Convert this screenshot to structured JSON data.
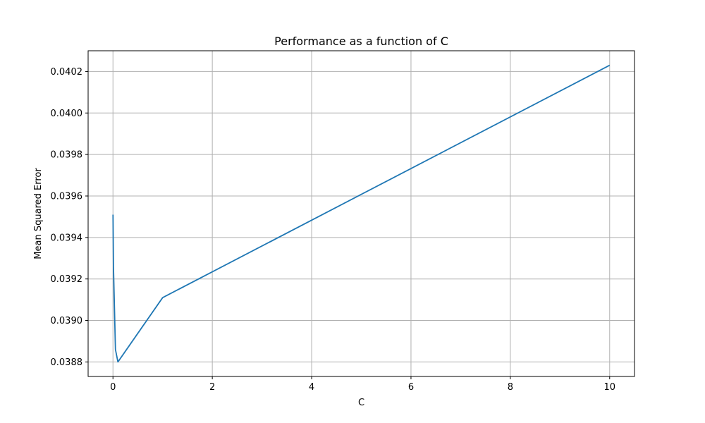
{
  "chart_data": {
    "type": "line",
    "title": "Performance as a function of C",
    "xlabel": "C",
    "ylabel": "Mean Squared Error",
    "xlim": [
      -0.5,
      10.5
    ],
    "ylim": [
      0.03873,
      0.0403
    ],
    "xticks": [
      0,
      2,
      4,
      6,
      8,
      10
    ],
    "xtick_labels": [
      "0",
      "2",
      "4",
      "6",
      "8",
      "10"
    ],
    "yticks": [
      0.0388,
      0.039,
      0.0392,
      0.0394,
      0.0396,
      0.0398,
      0.04,
      0.0402
    ],
    "ytick_labels": [
      "0.0388",
      "0.0390",
      "0.0392",
      "0.0394",
      "0.0396",
      "0.0398",
      "0.0400",
      "0.0402"
    ],
    "grid": true,
    "series": [
      {
        "color": "#1f77b4",
        "x": [
          0.001,
          0.01,
          0.05,
          0.1,
          1,
          10
        ],
        "y": [
          0.03951,
          0.03926,
          0.03886,
          0.0388,
          0.03911,
          0.04023
        ]
      }
    ]
  }
}
